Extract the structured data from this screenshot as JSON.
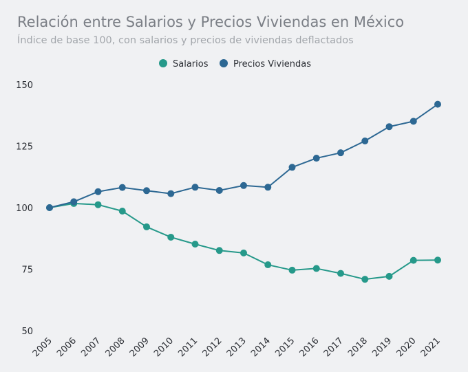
{
  "chart_data": {
    "type": "line",
    "title": "Relación entre Salarios y Precios Viviendas en México",
    "subtitle": "Índice de base 100, con salarios y precios de viviendas deflactados",
    "x": [
      "2005",
      "2006",
      "2007",
      "2008",
      "2009",
      "2010",
      "2011",
      "2012",
      "2013",
      "2014",
      "2015",
      "2016",
      "2017",
      "2018",
      "2019",
      "2020",
      "2021"
    ],
    "series": [
      {
        "name": "Salarios",
        "color": "#26998a",
        "values": [
          100,
          101.7,
          101.2,
          98.6,
          92.2,
          88.0,
          85.2,
          82.6,
          81.6,
          76.8,
          74.6,
          75.3,
          73.3,
          70.9,
          72.1,
          78.6,
          78.7
        ]
      },
      {
        "name": "Precios Viviendas",
        "color": "#2d6893",
        "values": [
          100,
          102.4,
          106.5,
          108.2,
          106.9,
          105.7,
          108.3,
          107.0,
          109.0,
          108.3,
          116.4,
          120.1,
          122.3,
          127.1,
          132.9,
          135.1,
          142.0
        ]
      }
    ],
    "ylim": [
      50,
      150
    ],
    "yticks": [
      50,
      75,
      100,
      125,
      150
    ],
    "grid": false,
    "legend_position": "top-center"
  }
}
